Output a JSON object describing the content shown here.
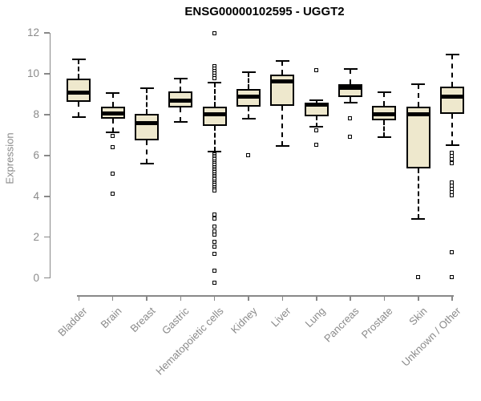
{
  "title": "ENSG00000102595 - UGGT2",
  "chart_data": {
    "type": "boxplot",
    "title": "ENSG00000102595 - UGGT2",
    "xlabel": "",
    "ylabel": "Expression",
    "ylim": [
      0,
      12
    ],
    "yticks": [
      0,
      2,
      4,
      6,
      8,
      10,
      12
    ],
    "grid": false,
    "legend": false,
    "categories": [
      "Bladder",
      "Brain",
      "Breast",
      "Gastric",
      "Hematopoietic cells",
      "Kidney",
      "Liver",
      "Lung",
      "Pancreas",
      "Prostate",
      "Skin",
      "Unknown / Other"
    ],
    "series": [
      {
        "name": "Bladder",
        "whisker_low": 7.87,
        "q1": 8.63,
        "median": 9.09,
        "q3": 9.75,
        "whisker_high": 10.7,
        "outliers": []
      },
      {
        "name": "Brain",
        "whisker_low": 7.13,
        "q1": 7.79,
        "median": 8.07,
        "q3": 8.4,
        "whisker_high": 9.05,
        "outliers": [
          6.93,
          6.38,
          5.1,
          4.12
        ]
      },
      {
        "name": "Breast",
        "whisker_low": 5.61,
        "q1": 6.73,
        "median": 7.57,
        "q3": 8.05,
        "whisker_high": 9.29,
        "outliers": []
      },
      {
        "name": "Gastric",
        "whisker_low": 7.65,
        "q1": 8.33,
        "median": 8.7,
        "q3": 9.13,
        "whisker_high": 9.77,
        "outliers": []
      },
      {
        "name": "Hematopoietic cells",
        "whisker_low": 6.19,
        "q1": 7.46,
        "median": 8.02,
        "q3": 8.37,
        "whisker_high": 9.55,
        "outliers": [
          11.97,
          10.35,
          10.22,
          10.1,
          9.98,
          9.86,
          9.78,
          6.05,
          5.96,
          5.87,
          5.78,
          5.69,
          5.6,
          5.51,
          5.42,
          5.33,
          5.25,
          5.16,
          5.07,
          4.98,
          4.89,
          4.8,
          4.71,
          4.62,
          4.53,
          4.44,
          4.36,
          4.27,
          3.08,
          2.88,
          2.49,
          2.26,
          2.1,
          1.77,
          1.53,
          1.18,
          0.33,
          -0.25
        ]
      },
      {
        "name": "Kidney",
        "whisker_low": 7.78,
        "q1": 8.4,
        "median": 8.87,
        "q3": 9.25,
        "whisker_high": 10.07,
        "outliers": [
          5.99
        ]
      },
      {
        "name": "Liver",
        "whisker_low": 6.47,
        "q1": 8.41,
        "median": 9.61,
        "q3": 9.94,
        "whisker_high": 10.64,
        "outliers": []
      },
      {
        "name": "Lung",
        "whisker_low": 7.41,
        "q1": 7.93,
        "median": 8.47,
        "q3": 8.6,
        "whisker_high": 8.72,
        "outliers": [
          10.17,
          7.22,
          6.5
        ]
      },
      {
        "name": "Pancreas",
        "whisker_low": 8.57,
        "q1": 8.85,
        "median": 9.31,
        "q3": 9.49,
        "whisker_high": 10.24,
        "outliers": [
          7.79,
          6.9
        ]
      },
      {
        "name": "Prostate",
        "whisker_low": 6.89,
        "q1": 7.72,
        "median": 8.02,
        "q3": 8.41,
        "whisker_high": 9.09,
        "outliers": []
      },
      {
        "name": "Skin",
        "whisker_low": 2.9,
        "q1": 5.36,
        "median": 8.0,
        "q3": 8.4,
        "whisker_high": 9.49,
        "outliers": [
          0.02
        ]
      },
      {
        "name": "Unknown / Other",
        "whisker_low": 6.52,
        "q1": 8.05,
        "median": 8.89,
        "q3": 9.38,
        "whisker_high": 10.92,
        "outliers": [
          6.11,
          5.95,
          5.79,
          5.62,
          4.67,
          4.51,
          4.35,
          4.18,
          4.02,
          1.23,
          0.02
        ]
      }
    ],
    "colors": {
      "box_fill": "#EEE8CD",
      "box_border": "#000000",
      "median": "#000000",
      "whisker": "#000000",
      "axis": "#888888",
      "tick_text": "#8a8a8a",
      "title_text": "#000000"
    }
  }
}
